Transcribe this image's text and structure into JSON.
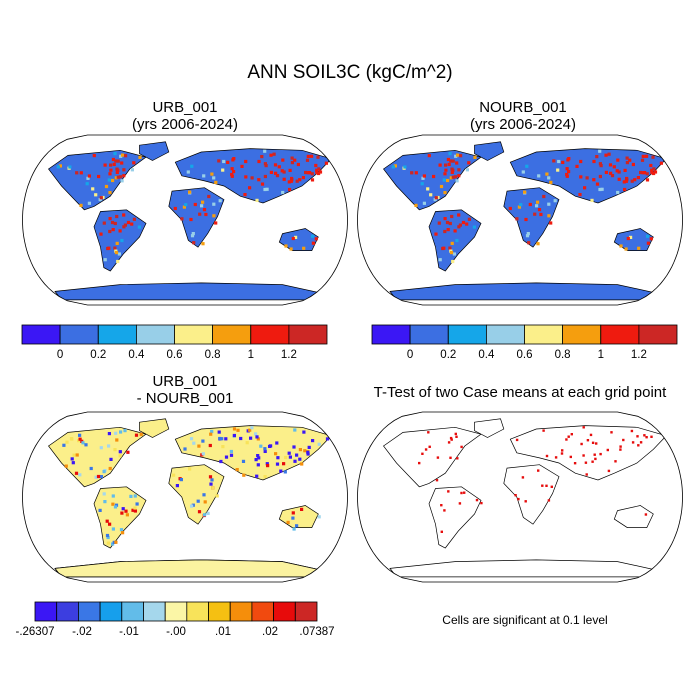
{
  "title": "ANN SOIL3C (kgC/m^2)",
  "panels": [
    {
      "id": "p1",
      "title_line1": "URB_001",
      "title_line2": "(yrs 2006-2024)"
    },
    {
      "id": "p2",
      "title_line1": "NOURB_001",
      "title_line2": "(yrs 2006-2024)"
    },
    {
      "id": "p3",
      "title_line1": "URB_001",
      "title_line2": "- NOURB_001"
    },
    {
      "id": "p4",
      "title_line1": "T-Test of two Case means at each grid point",
      "title_line2": ""
    }
  ],
  "significance_note": "Cells are significant at 0.1 level",
  "chart_data": [
    {
      "type": "heatmap",
      "projection": "robinson",
      "case": "URB_001",
      "period": "2006-2024",
      "colorbar": {
        "colors": [
          "#3b17f5",
          "#3c6fe2",
          "#15a6e9",
          "#98cfe8",
          "#fbef8a",
          "#f59e0e",
          "#ef1b0f",
          "#cc2725"
        ],
        "tick_labels": [
          "0",
          "0.2",
          "0.4",
          "0.6",
          "0.8",
          "1",
          "1.2"
        ]
      }
    },
    {
      "type": "heatmap",
      "projection": "robinson",
      "case": "NOURB_001",
      "period": "2006-2024",
      "colorbar": {
        "colors": [
          "#3b17f5",
          "#3c6fe2",
          "#15a6e9",
          "#98cfe8",
          "#fbef8a",
          "#f59e0e",
          "#ef1b0f",
          "#cc2725"
        ],
        "tick_labels": [
          "0",
          "0.2",
          "0.4",
          "0.6",
          "0.8",
          "1",
          "1.2"
        ]
      }
    },
    {
      "type": "heatmap",
      "projection": "robinson",
      "case": "URB_001 - NOURB_001",
      "colorbar": {
        "colors": [
          "#3b17f5",
          "#3c3ee0",
          "#3a77e6",
          "#169fec",
          "#62bce9",
          "#a5d7ec",
          "#fbf6a6",
          "#f8e35a",
          "#f5c012",
          "#f58e0b",
          "#f14a0f",
          "#e70b0b",
          "#cc2725"
        ],
        "tick_labels": [
          "-.26307",
          "-.02",
          "-.01",
          "-.00",
          ".01",
          ".02",
          ".07387"
        ],
        "min": -0.26307,
        "max": 0.07387
      }
    },
    {
      "type": "heatmap",
      "projection": "robinson",
      "description_shown": "T-Test of two Case means at each grid point",
      "significant_color": "#e60d0d",
      "significance_level": 0.1
    }
  ]
}
